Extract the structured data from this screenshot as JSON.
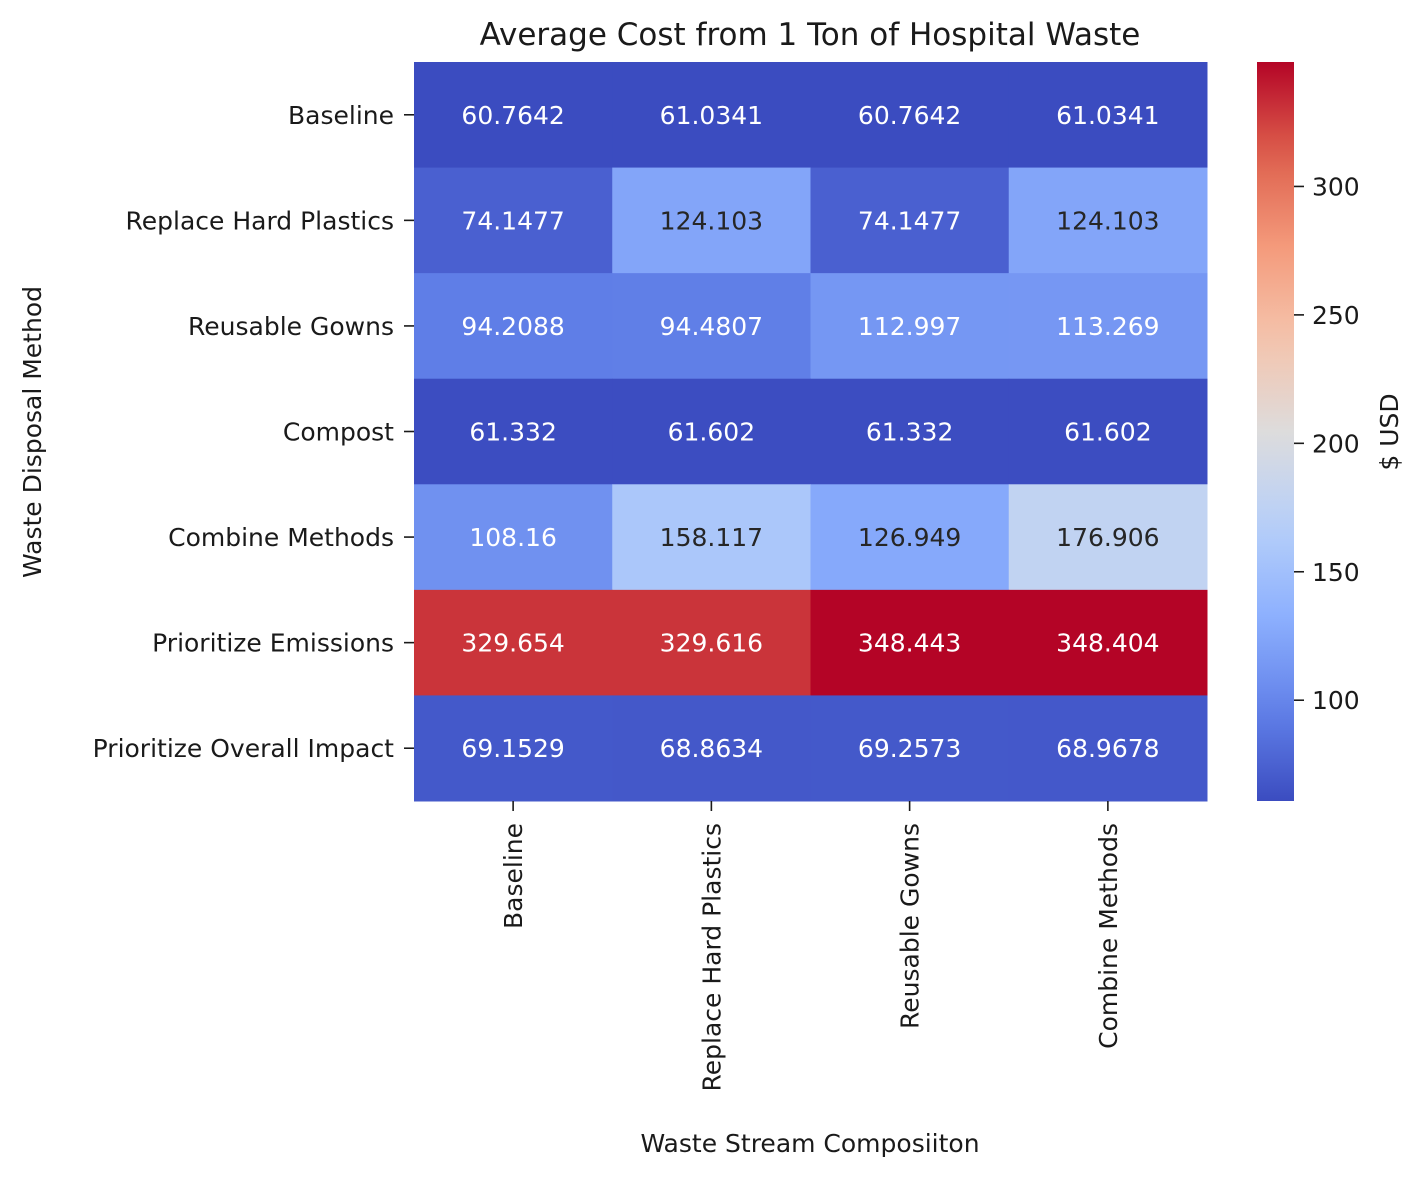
{
  "chart_data": {
    "type": "heatmap",
    "title": "Average Cost from 1 Ton of Hospital Waste",
    "xlabel": "Waste Stream Composiiton",
    "ylabel": "Waste Disposal Method",
    "x_categories": [
      "Baseline",
      "Replace Hard Plastics",
      "Reusable Gowns",
      "Combine Methods"
    ],
    "y_categories": [
      "Baseline",
      "Replace Hard Plastics",
      "Reusable Gowns",
      "Compost",
      "Combine Methods",
      "Prioritize Emissions",
      "Prioritize Overall Impact"
    ],
    "values": [
      [
        60.7642,
        61.0341,
        60.7642,
        61.0341
      ],
      [
        74.1477,
        124.103,
        74.1477,
        124.103
      ],
      [
        94.2088,
        94.4807,
        112.997,
        113.269
      ],
      [
        61.332,
        61.602,
        61.332,
        61.602
      ],
      [
        108.16,
        158.117,
        126.949,
        176.906
      ],
      [
        329.654,
        329.616,
        348.443,
        348.404
      ],
      [
        69.1529,
        68.8634,
        69.2573,
        68.9678
      ]
    ],
    "value_labels": [
      [
        "60.7642",
        "61.0341",
        "60.7642",
        "61.0341"
      ],
      [
        "74.1477",
        "124.103",
        "74.1477",
        "124.103"
      ],
      [
        "94.2088",
        "94.4807",
        "112.997",
        "113.269"
      ],
      [
        "61.332",
        "61.602",
        "61.332",
        "61.602"
      ],
      [
        "108.16",
        "158.117",
        "126.949",
        "176.906"
      ],
      [
        "329.654",
        "329.616",
        "348.443",
        "348.404"
      ],
      [
        "69.1529",
        "68.8634",
        "69.2573",
        "68.9678"
      ]
    ],
    "colorbar": {
      "label": "$ USD",
      "colormap": "coolwarm",
      "vmin": 60.7642,
      "vmax": 348.443,
      "ticks": [
        100,
        150,
        200,
        250,
        300
      ]
    }
  }
}
